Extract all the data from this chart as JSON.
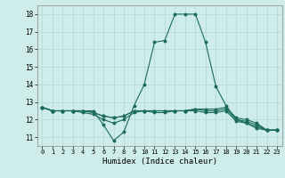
{
  "title": "",
  "xlabel": "Humidex (Indice chaleur)",
  "ylabel": "",
  "background_color": "#cdecea",
  "grid_color": "#b0d8d4",
  "line_color": "#1a6b5e",
  "xlim": [
    -0.5,
    23.5
  ],
  "ylim": [
    10.5,
    18.5
  ],
  "yticks": [
    11,
    12,
    13,
    14,
    15,
    16,
    17,
    18
  ],
  "xticks": [
    0,
    1,
    2,
    3,
    4,
    5,
    6,
    7,
    8,
    9,
    10,
    11,
    12,
    13,
    14,
    15,
    16,
    17,
    18,
    19,
    20,
    21,
    22,
    23
  ],
  "series": [
    [
      12.7,
      12.5,
      12.5,
      12.5,
      12.5,
      12.5,
      11.7,
      10.8,
      11.3,
      12.8,
      14.0,
      16.4,
      16.5,
      18.0,
      18.0,
      18.0,
      16.4,
      13.9,
      12.8,
      12.0,
      11.8,
      11.5,
      11.4,
      11.4
    ],
    [
      12.7,
      12.5,
      12.5,
      12.5,
      12.5,
      12.4,
      12.2,
      12.1,
      12.2,
      12.5,
      12.5,
      12.5,
      12.5,
      12.5,
      12.5,
      12.6,
      12.6,
      12.6,
      12.7,
      12.1,
      12.0,
      11.8,
      11.4,
      11.4
    ],
    [
      12.7,
      12.5,
      12.5,
      12.5,
      12.5,
      12.4,
      12.2,
      12.1,
      12.2,
      12.5,
      12.5,
      12.5,
      12.5,
      12.5,
      12.5,
      12.6,
      12.5,
      12.5,
      12.6,
      12.0,
      11.9,
      11.7,
      11.4,
      11.4
    ],
    [
      12.7,
      12.5,
      12.5,
      12.5,
      12.4,
      12.3,
      12.0,
      11.8,
      12.0,
      12.4,
      12.5,
      12.4,
      12.4,
      12.5,
      12.5,
      12.5,
      12.4,
      12.4,
      12.5,
      11.9,
      11.8,
      11.6,
      11.4,
      11.4
    ]
  ]
}
